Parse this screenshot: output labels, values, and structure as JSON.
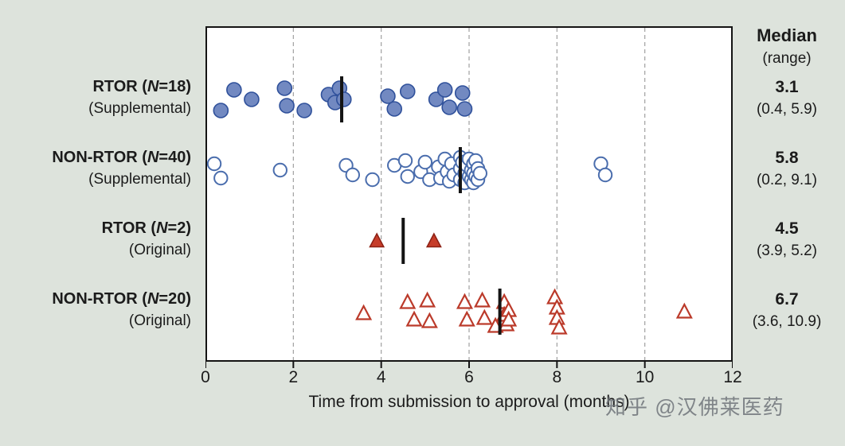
{
  "watermark": "知乎 @汉佛莱医药",
  "stats_header": {
    "line1": "Median",
    "line2": "(range)"
  },
  "chart_data": {
    "type": "scatter",
    "title": "",
    "xlabel": "Time from submission to approval (months)",
    "ylabel": "",
    "xlim": [
      0,
      12
    ],
    "xticks": [
      "0",
      "2",
      "4",
      "6",
      "8",
      "10",
      "12"
    ],
    "grid": "vertical-dashed",
    "legend_position": "none",
    "colors": {
      "background": "#dde3dc",
      "plot_background": "#ffffff",
      "border": "#141414",
      "gridline": "#a0a0a0",
      "median_tick": "#141414",
      "blue_fill": "#7289c1",
      "blue_stroke": "#30519b",
      "blue_open_stroke": "#4a6dad",
      "red_fill": "#c63d2a",
      "red_stroke": "#8c2014",
      "red_open_stroke": "#bb3a2a"
    },
    "groups": [
      {
        "label_line1": {
          "pre": "RTOR (",
          "n": "N",
          "post": "=18)"
        },
        "label_line2": "(Supplemental)",
        "marker": "circle-filled",
        "fill": "#7289c1",
        "stroke": "#30519b",
        "median": 3.1,
        "median_label": "3.1",
        "range_label": "(0.4, 5.9)",
        "points": [
          [
            0.35,
            14
          ],
          [
            0.65,
            -12
          ],
          [
            1.05,
            0
          ],
          [
            1.8,
            -14
          ],
          [
            1.85,
            8
          ],
          [
            2.25,
            14
          ],
          [
            2.8,
            -6
          ],
          [
            2.95,
            4
          ],
          [
            3.05,
            -14
          ],
          [
            3.15,
            0
          ],
          [
            4.15,
            -4
          ],
          [
            4.3,
            12
          ],
          [
            4.6,
            -10
          ],
          [
            5.25,
            0
          ],
          [
            5.45,
            -12
          ],
          [
            5.55,
            10
          ],
          [
            5.85,
            -8
          ],
          [
            5.9,
            12
          ]
        ]
      },
      {
        "label_line1": {
          "pre": "NON-RTOR (",
          "n": "N",
          "post": "=40)"
        },
        "label_line2": "(Supplemental)",
        "marker": "circle-open",
        "fill": "#ffffff",
        "stroke": "#4a6dad",
        "median": 5.8,
        "median_label": "5.8",
        "range_label": "(0.2, 9.1)",
        "points": [
          [
            0.2,
            -8
          ],
          [
            0.35,
            10
          ],
          [
            1.7,
            0
          ],
          [
            3.2,
            -6
          ],
          [
            3.35,
            6
          ],
          [
            3.8,
            12
          ],
          [
            4.3,
            -6
          ],
          [
            4.55,
            -12
          ],
          [
            4.6,
            8
          ],
          [
            4.9,
            2
          ],
          [
            5.0,
            -10
          ],
          [
            5.1,
            12
          ],
          [
            5.3,
            -4
          ],
          [
            5.35,
            10
          ],
          [
            5.45,
            -14
          ],
          [
            5.5,
            2
          ],
          [
            5.55,
            14
          ],
          [
            5.6,
            -8
          ],
          [
            5.65,
            6
          ],
          [
            5.8,
            -16
          ],
          [
            5.8,
            -2
          ],
          [
            5.8,
            12
          ],
          [
            5.85,
            -10
          ],
          [
            5.9,
            4
          ],
          [
            5.9,
            16
          ],
          [
            5.95,
            -6
          ],
          [
            6.0,
            8
          ],
          [
            6.0,
            -14
          ],
          [
            6.05,
            0
          ],
          [
            6.05,
            12
          ],
          [
            6.1,
            -8
          ],
          [
            6.1,
            4
          ],
          [
            6.1,
            16
          ],
          [
            6.15,
            -12
          ],
          [
            6.15,
            8
          ],
          [
            6.2,
            -2
          ],
          [
            6.2,
            12
          ],
          [
            6.25,
            4
          ],
          [
            9.0,
            -8
          ],
          [
            9.1,
            6
          ]
        ]
      },
      {
        "label_line1": {
          "pre": "RTOR (",
          "n": "N",
          "post": "=2)"
        },
        "label_line2": "(Original)",
        "marker": "triangle-filled",
        "fill": "#c63d2a",
        "stroke": "#8c2014",
        "median": 4.5,
        "median_label": "4.5",
        "range_label": "(3.9, 5.2)",
        "points": [
          [
            3.9,
            0
          ],
          [
            5.2,
            0
          ]
        ]
      },
      {
        "label_line1": {
          "pre": "NON-RTOR (",
          "n": "N",
          "post": "=20)"
        },
        "label_line2": "(Original)",
        "marker": "triangle-open",
        "fill": "#ffffff",
        "stroke": "#bb3a2a",
        "median": 6.7,
        "median_label": "6.7",
        "range_label": "(3.6, 10.9)",
        "points": [
          [
            3.6,
            2
          ],
          [
            4.6,
            -12
          ],
          [
            4.75,
            10
          ],
          [
            5.05,
            -14
          ],
          [
            5.1,
            12
          ],
          [
            5.9,
            -12
          ],
          [
            5.95,
            10
          ],
          [
            6.3,
            -14
          ],
          [
            6.35,
            8
          ],
          [
            6.6,
            18
          ],
          [
            6.8,
            -12
          ],
          [
            6.8,
            4
          ],
          [
            6.85,
            16
          ],
          [
            6.9,
            -2
          ],
          [
            6.9,
            10
          ],
          [
            7.95,
            -18
          ],
          [
            8.0,
            -5
          ],
          [
            8.0,
            8
          ],
          [
            8.05,
            20
          ],
          [
            10.9,
            0
          ]
        ]
      }
    ]
  }
}
